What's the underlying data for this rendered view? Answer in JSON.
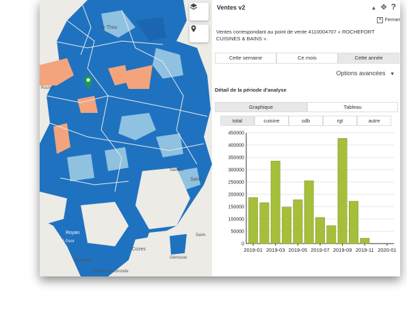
{
  "map": {
    "labels": [
      "Le Thou",
      "Rochef",
      "Royan",
      "Saint-Geor",
      "Meschers",
      "Talmont-sur-Gironde",
      "Cozes",
      "Gémozac",
      "Saint",
      "Saint-",
      "Saintes"
    ]
  },
  "panel": {
    "title": "Ventes v2",
    "close_label": "Fermer",
    "description": "Ventes correspondant au point de vente 4110004707 « ROCHEFORT CUISINES & BAINS ».",
    "period_tabs": [
      "Cette semaine",
      "Ce mois",
      "Cette année"
    ],
    "options_label": "Options avancées",
    "detail_title": "Détail de la période d'analyse",
    "view_tabs": [
      "Graphique",
      "Tableau"
    ],
    "category_tabs": [
      "total",
      "cuisine",
      "sdb",
      "rgt",
      "autre"
    ]
  },
  "colors": {
    "bar": "#a5bf3a",
    "map_dark": "#1f72c0",
    "map_light": "#8fc1e0",
    "map_orange": "#f3a47c"
  },
  "chart_data": {
    "type": "bar",
    "categories": [
      "2019-01",
      "2019-02",
      "2019-03",
      "2019-04",
      "2019-05",
      "2019-06",
      "2019-07",
      "2019-08",
      "2019-09",
      "2019-10",
      "2019-11",
      "2019-12",
      "2020-01"
    ],
    "values": [
      187000,
      166000,
      335000,
      148000,
      178000,
      255000,
      106000,
      73000,
      427000,
      172000,
      22000,
      0,
      0
    ],
    "tick_labels": [
      "2019-01",
      "2019-03",
      "2019-05",
      "2019-07",
      "2019-09",
      "2019-11",
      "2020-01"
    ],
    "yticks": [
      0,
      50000,
      100000,
      150000,
      200000,
      250000,
      300000,
      350000,
      400000,
      450000
    ],
    "ylim": [
      0,
      450000
    ],
    "grid": true
  }
}
